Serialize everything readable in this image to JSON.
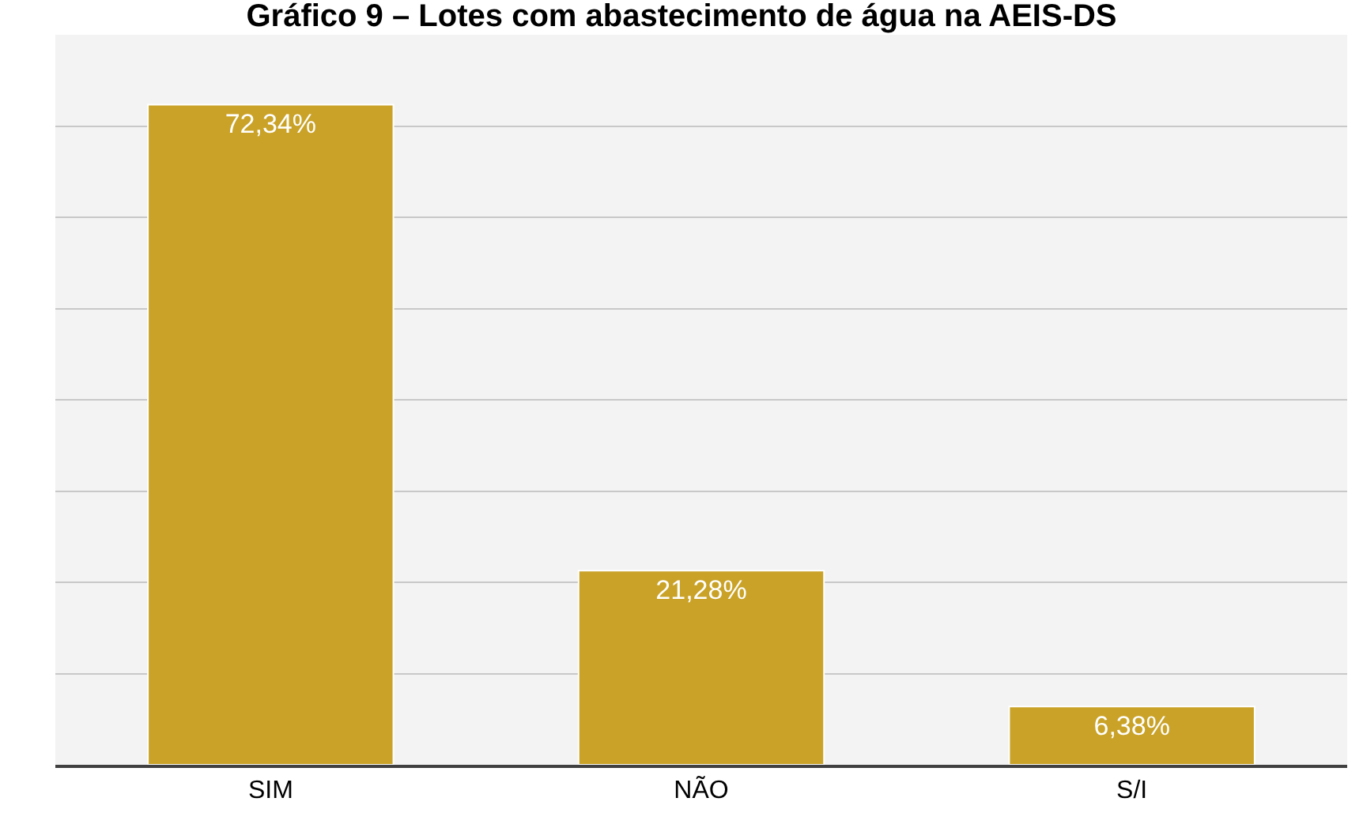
{
  "chart_data": {
    "type": "bar",
    "title": "Gráfico 9 – Lotes com abastecimento de água na AEIS-DS",
    "categories": [
      "SIM",
      "NÃO",
      "S/I"
    ],
    "values": [
      72.34,
      21.28,
      6.38
    ],
    "value_labels": [
      "72,34%",
      "21,28%",
      "6,38%"
    ],
    "color": "#c9a227",
    "ylim": [
      0,
      80
    ],
    "yticks": [
      {
        "value": 0,
        "label": null
      },
      {
        "value": 10,
        "label": null
      },
      {
        "value": 20,
        "label": null
      },
      {
        "value": 30,
        "label": null
      },
      {
        "value": 40,
        "label": null
      },
      {
        "value": 50,
        "label": null
      },
      {
        "value": 60,
        "label": null
      },
      {
        "value": 70,
        "label": null
      },
      {
        "value": 80,
        "label": null
      }
    ],
    "grid": "y",
    "tick_labels": "x",
    "legend": false
  }
}
